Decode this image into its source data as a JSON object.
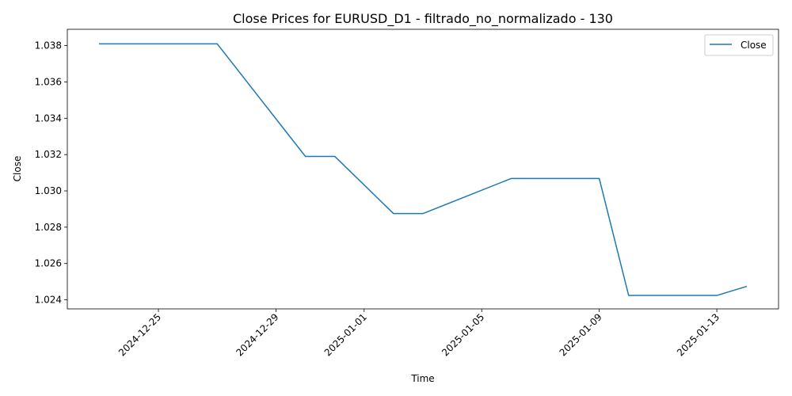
{
  "chart_data": {
    "type": "line",
    "title": "Close Prices for EURUSD_D1 - filtrado_no_normalizado - 130",
    "xlabel": "Time",
    "ylabel": "Close",
    "x_ticks": [
      "2024-12-25",
      "2024-12-29",
      "2025-01-01",
      "2025-01-05",
      "2025-01-09",
      "2025-01-13"
    ],
    "y_ticks": [
      "1.024",
      "1.026",
      "1.028",
      "1.030",
      "1.032",
      "1.034",
      "1.036",
      "1.038"
    ],
    "ylim": [
      1.0235,
      1.0389
    ],
    "xlim": [
      "2024-12-21T21:36",
      "2025-01-15T02:24"
    ],
    "grid": false,
    "legend": {
      "position": "upper right"
    },
    "series": [
      {
        "name": "Close",
        "color": "#1f77b4",
        "x": [
          "2024-12-23",
          "2024-12-27",
          "2024-12-30",
          "2024-12-31",
          "2025-01-02",
          "2025-01-03",
          "2025-01-06",
          "2025-01-09",
          "2025-01-10",
          "2025-01-13",
          "2025-01-14"
        ],
        "values": [
          1.0381,
          1.0381,
          1.0319,
          1.0319,
          1.02875,
          1.02875,
          1.03068,
          1.03068,
          1.02424,
          1.02424,
          1.02473
        ]
      }
    ]
  }
}
